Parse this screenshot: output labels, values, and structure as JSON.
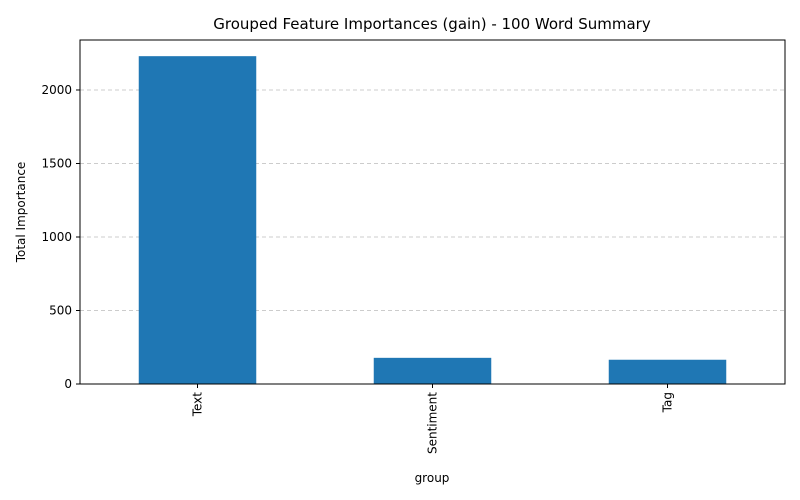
{
  "chart_data": {
    "type": "bar",
    "title": "Grouped Feature Importances (gain) - 100 Word Summary",
    "xlabel": "group",
    "ylabel": "Total Importance",
    "categories": [
      "Text",
      "Sentiment",
      "Tag"
    ],
    "values": [
      2230,
      178,
      165
    ],
    "ylim": [
      0,
      2340
    ],
    "yticks": [
      0,
      500,
      1000,
      1500,
      2000
    ],
    "ytick_labels": [
      "0",
      "500",
      "1000",
      "1500",
      "2000"
    ],
    "grid": "y-dashed",
    "legend": "none",
    "colors": {
      "bar": "#1f77b4",
      "grid": "#cccccc"
    }
  }
}
